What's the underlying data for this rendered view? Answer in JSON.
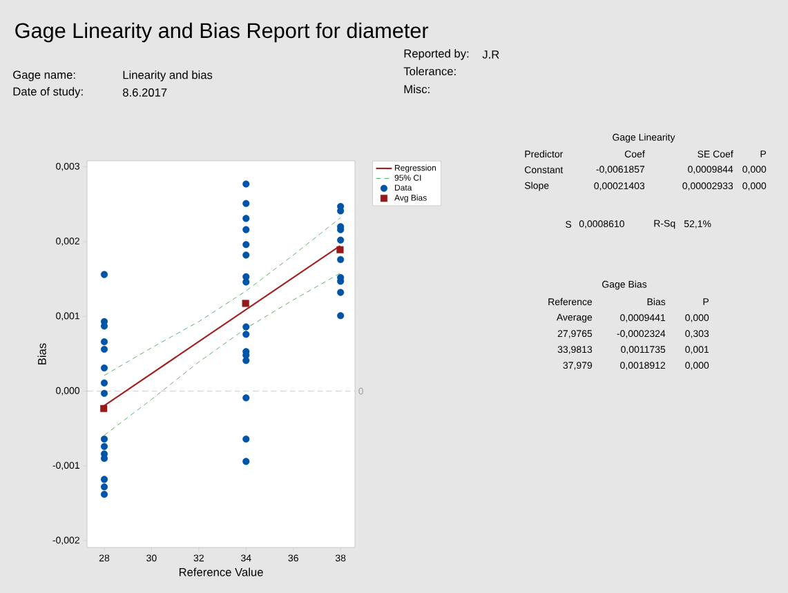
{
  "chart_data": {
    "type": "scatter",
    "title": "Gage Linearity and Bias Report for diameter",
    "xlabel": "Reference Value",
    "ylabel": "Bias",
    "xlim": [
      27.27,
      38.61
    ],
    "ylim": [
      -0.00209,
      0.00308
    ],
    "xticks": [
      28,
      30,
      32,
      34,
      36,
      38
    ],
    "yticks": [
      {
        "value": -0.002,
        "label": "-0,002"
      },
      {
        "value": -0.001,
        "label": "-0,001"
      },
      {
        "value": 0,
        "label": "0,000"
      },
      {
        "value": 0.001,
        "label": "0,001"
      },
      {
        "value": 0.002,
        "label": "0,002"
      },
      {
        "value": 0.003,
        "label": "0,003"
      }
    ],
    "legend": "right",
    "ref_lines": [
      {
        "axis": "y",
        "value": 0,
        "label": "0",
        "color": "#a0a0a0",
        "line_style": "dashed"
      }
    ],
    "series": [
      {
        "name": "Regression",
        "type": "line",
        "color": "#a31f1f",
        "marker": "none",
        "line_style": "solid",
        "x": [
          27.9765,
          37.979
        ],
        "values": [
          -0.000198,
          0.001943
        ]
      },
      {
        "name": "95% CI",
        "type": "line",
        "color": "#2e9e3e",
        "marker": "none",
        "line_style": "dashed",
        "x": [
          28,
          30,
          32,
          34,
          36,
          38
        ],
        "values": [
          0.00021,
          0.00058,
          0.00093,
          0.00134,
          0.00182,
          0.00232
        ]
      },
      {
        "type": "line",
        "color": "#2e9e3e",
        "marker": "none",
        "line_style": "dashed",
        "x": [
          28,
          30,
          32,
          34,
          36,
          38
        ],
        "values": [
          -0.00059,
          -0.00011,
          0.00039,
          0.00084,
          0.00122,
          0.00158
        ]
      },
      {
        "name": "Data",
        "color": "#0054a6",
        "marker": "circle",
        "x": [
          28,
          28,
          28,
          28,
          28,
          28,
          28,
          28,
          28,
          28,
          28,
          28,
          28,
          28,
          28,
          34,
          34,
          34,
          34,
          34,
          34,
          34,
          34,
          34,
          34,
          34,
          34,
          34,
          34,
          34,
          34,
          38,
          38,
          38,
          38,
          38,
          38,
          38,
          38,
          38,
          38
        ],
        "values": [
          0.00156,
          0.00093,
          0.00087,
          0.00066,
          0.00056,
          0.00031,
          0.00011,
          -3e-05,
          -0.00064,
          -0.00074,
          -0.00084,
          -0.0009,
          -0.00118,
          -0.00128,
          -0.00138,
          0.00277,
          0.00251,
          0.00231,
          0.00216,
          0.00196,
          0.00182,
          0.00153,
          0.00146,
          0.00086,
          0.00076,
          0.00053,
          0.00048,
          0.00041,
          -9e-05,
          -0.00064,
          -0.00094,
          0.00247,
          0.00241,
          0.0022,
          0.00216,
          0.00202,
          0.00176,
          0.00152,
          0.00147,
          0.00132,
          0.00101
        ]
      },
      {
        "name": "Avg Bias",
        "color": "#951a1a",
        "marker": "square",
        "x": [
          27.9765,
          33.9813,
          37.979
        ],
        "values": [
          -0.0002324,
          0.0011735,
          0.0018912
        ]
      }
    ],
    "annotations": [
      "Gage name:",
      "Linearity and bias",
      "Date of study:",
      "8.6.2017",
      "Reported by:",
      "J.R",
      "Tolerance:",
      "Misc:",
      "Gage Linearity",
      "Predictor",
      "Coef",
      "SE Coef",
      "P",
      "Constant",
      "-0,0061857",
      "0,0009844",
      "0,000",
      "Slope",
      "0,00021403",
      "0,00002933",
      "0,000",
      "S",
      "0,0008610",
      "R-Sq",
      "52,1%",
      "Gage Bias",
      "Reference",
      "Bias",
      "P",
      "Average",
      "0,0009441",
      "0,000",
      "27,9765",
      "-0,0002324",
      "0,303",
      "33,9813",
      "0,0011735",
      "0,001",
      "37,979",
      "0,0018912",
      "0,000"
    ]
  }
}
